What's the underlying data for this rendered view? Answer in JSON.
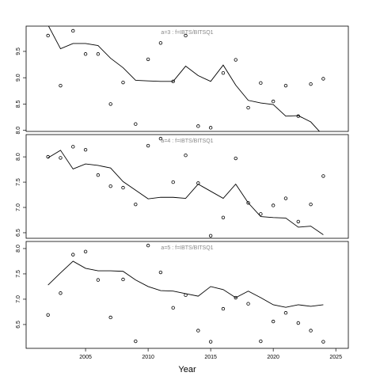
{
  "chart_data": [
    {
      "type": "line",
      "title": "a=3 : f=IBTS/BITSQ1",
      "x": [
        2002,
        2003,
        2004,
        2005,
        2006,
        2007,
        2008,
        2009,
        2010,
        2011,
        2012,
        2013,
        2014,
        2015,
        2016,
        2017,
        2018,
        2019,
        2020,
        2021,
        2022,
        2023,
        2024
      ],
      "series": [
        {
          "mark": "point",
          "color": "#000000",
          "values": [
            9.8,
            8.85,
            9.89,
            9.45,
            9.45,
            8.5,
            8.91,
            8.12,
            9.35,
            9.66,
            8.93,
            9.8,
            8.08,
            8.05,
            9.09,
            9.34,
            8.43,
            8.9,
            8.55,
            8.85,
            8.27,
            8.88,
            8.98
          ]
        },
        {
          "mark": "line",
          "color": "#000000",
          "values": [
            10.0,
            9.55,
            9.65,
            9.65,
            9.61,
            9.37,
            9.19,
            8.95,
            8.94,
            8.93,
            8.93,
            9.22,
            9.04,
            8.93,
            9.24,
            8.86,
            8.57,
            8.52,
            8.49,
            8.27,
            8.28,
            8.16,
            7.9
          ]
        }
      ],
      "xlim": [
        2000.25,
        2026.0
      ],
      "ylim": [
        7.98,
        9.98
      ],
      "yticks": [
        {
          "value": 8,
          "label": "8.0"
        },
        8.5,
        {
          "value": 9,
          "label": "9.0"
        },
        9.5
      ]
    },
    {
      "type": "line",
      "title": "a=4 : f=IBTS/BITSQ1",
      "x": [
        2002,
        2003,
        2004,
        2005,
        2006,
        2007,
        2008,
        2009,
        2010,
        2011,
        2012,
        2013,
        2014,
        2015,
        2016,
        2017,
        2018,
        2019,
        2020,
        2021,
        2022,
        2023,
        2024
      ],
      "series": [
        {
          "mark": "point",
          "color": "#000000",
          "values": [
            8.0,
            7.98,
            8.2,
            8.14,
            7.64,
            7.42,
            7.39,
            7.06,
            8.22,
            8.36,
            7.5,
            8.03,
            7.48,
            6.44,
            6.8,
            7.97,
            7.09,
            6.87,
            7.04,
            7.18,
            6.72,
            7.06,
            7.62
          ]
        },
        {
          "mark": "line",
          "color": "#000000",
          "values": [
            7.98,
            8.13,
            7.76,
            7.86,
            7.83,
            7.78,
            7.51,
            7.34,
            7.17,
            7.2,
            7.2,
            7.18,
            7.46,
            7.32,
            7.18,
            7.46,
            7.09,
            6.82,
            6.8,
            6.79,
            6.61,
            6.63,
            6.46
          ]
        }
      ],
      "xlim": [
        2000.25,
        2026.0
      ],
      "ylim": [
        6.39,
        8.44
      ],
      "yticks": [
        6.5,
        {
          "value": 7,
          "label": "7.0"
        },
        7.5,
        {
          "value": 8,
          "label": "8.0"
        }
      ]
    },
    {
      "type": "line",
      "title": "a=5 : f=IBTS/BITSQ1",
      "x": [
        2002,
        2003,
        2004,
        2005,
        2006,
        2007,
        2008,
        2009,
        2010,
        2011,
        2012,
        2013,
        2014,
        2015,
        2016,
        2017,
        2018,
        2019,
        2020,
        2021,
        2022,
        2023,
        2024
      ],
      "series": [
        {
          "mark": "point",
          "color": "#000000",
          "values": [
            6.69,
            7.12,
            7.88,
            7.94,
            7.38,
            6.64,
            7.39,
            6.17,
            8.06,
            7.53,
            6.83,
            7.08,
            6.38,
            6.16,
            6.81,
            7.03,
            6.91,
            6.17,
            6.56,
            6.73,
            6.53,
            6.38,
            6.16
          ]
        },
        {
          "mark": "line",
          "color": "#000000",
          "values": [
            7.28,
            7.52,
            7.75,
            7.61,
            7.56,
            7.56,
            7.55,
            7.38,
            7.25,
            7.17,
            7.16,
            7.11,
            7.06,
            7.25,
            7.19,
            7.03,
            7.16,
            7.03,
            6.89,
            6.84,
            6.89,
            6.86,
            6.89
          ]
        }
      ],
      "xlim": [
        2000.25,
        2026.0
      ],
      "ylim": [
        6.03,
        8.14
      ],
      "yticks": [
        6.5,
        {
          "value": 7,
          "label": "7.0"
        },
        7.5,
        {
          "value": 8,
          "label": "8.0"
        }
      ],
      "xlabel": "Year",
      "xticks": [
        2005,
        2010,
        2015,
        2020,
        2025
      ]
    }
  ]
}
